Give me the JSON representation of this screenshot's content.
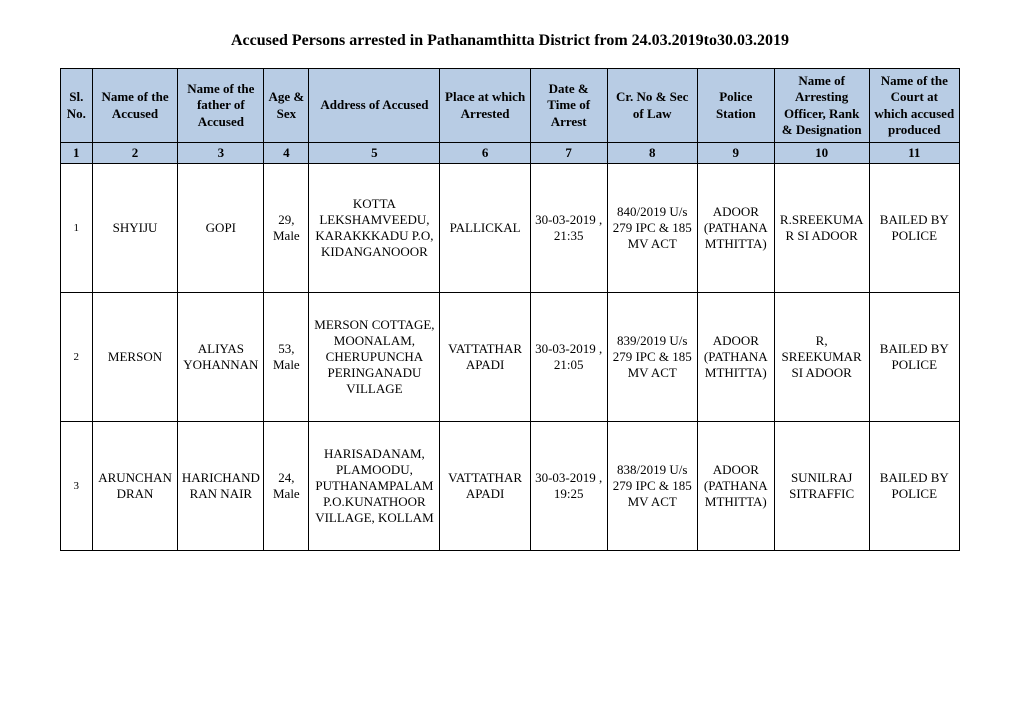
{
  "title": "Accused Persons arrested in   Pathanamthitta   District from   24.03.2019to30.03.2019",
  "columns": [
    "Sl. No.",
    "Name of the Accused",
    "Name of the father of Accused",
    "Age & Sex",
    "Address of Accused",
    "Place at which Arrested",
    "Date & Time of Arrest",
    "Cr. No & Sec of Law",
    "Police Station",
    "Name of Arresting Officer, Rank & Designation",
    "Name of the Court at which accused produced"
  ],
  "colnums": [
    "1",
    "2",
    "3",
    "4",
    "5",
    "6",
    "7",
    "8",
    "9",
    "10",
    "11"
  ],
  "rows": [
    {
      "sl": "1",
      "accused": "SHYIJU",
      "father": "GOPI",
      "agesex": "29, Male",
      "address": "KOTTA LEKSHAMVEEDU, KARAKKKADU P.O, KIDANGANOOOR",
      "place": "PALLICKAL",
      "datetime": "30-03-2019 , 21:35",
      "crno": "840/2019 U/s 279 IPC & 185 MV ACT",
      "station": "ADOOR (PATHANAMTHITTA)",
      "officer": "R.SREEKUMAR SI ADOOR",
      "court": "BAILED BY POLICE"
    },
    {
      "sl": "2",
      "accused": "MERSON",
      "father": "ALIYAS YOHANNAN",
      "agesex": "53, Male",
      "address": "MERSON COTTAGE, MOONALAM, CHERUPUNCHA PERINGANADU VILLAGE",
      "place": "VATTATHAR APADI",
      "datetime": "30-03-2019 , 21:05",
      "crno": "839/2019 U/s 279 IPC & 185 MV ACT",
      "station": "ADOOR (PATHANAMTHITTA)",
      "officer": "R, SREEKUMAR SI ADOOR",
      "court": "BAILED BY POLICE"
    },
    {
      "sl": "3",
      "accused": "ARUNCHANDRAN",
      "father": "HARICHANDRAN NAIR",
      "agesex": "24, Male",
      "address": "HARISADANAM, PLAMOODU, PUTHANAMPALAM P.O.KUNATHOOR VILLAGE, KOLLAM",
      "place": "VATTATHAR APADI",
      "datetime": "30-03-2019 , 19:25",
      "crno": "838/2019 U/s 279 IPC & 185 MV ACT",
      "station": "ADOOR (PATHANAMTHITTA)",
      "officer": "SUNILRAJ SITRAFFIC",
      "court": "BAILED BY POLICE"
    }
  ]
}
